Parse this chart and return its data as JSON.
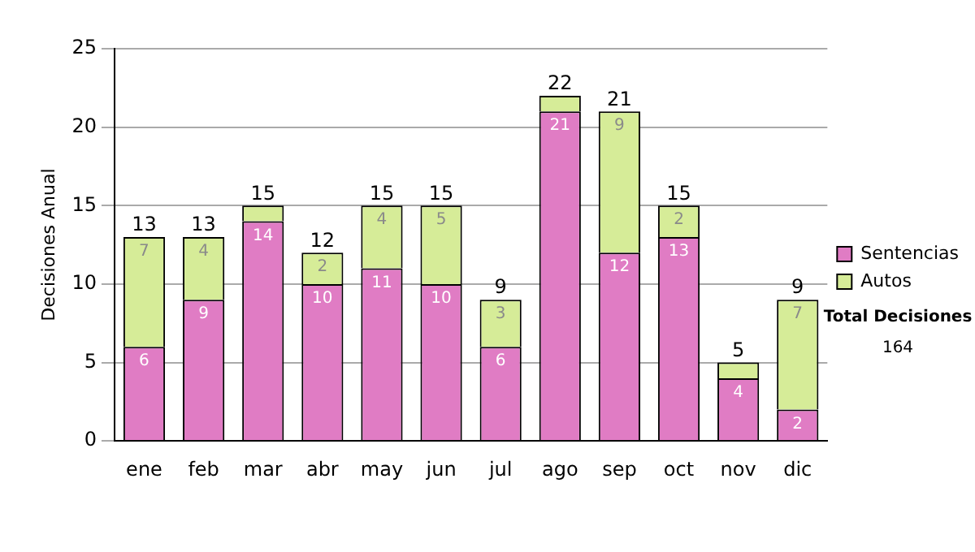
{
  "chart_data": {
    "type": "bar",
    "stacked": true,
    "ylabel": "Decisiones Anual",
    "categories": [
      "ene",
      "feb",
      "mar",
      "abr",
      "may",
      "jun",
      "jul",
      "ago",
      "sep",
      "oct",
      "nov",
      "dic"
    ],
    "series": [
      {
        "name": "Sentencias",
        "color": "#e07cc4",
        "values": [
          6,
          9,
          14,
          10,
          11,
          10,
          6,
          21,
          12,
          13,
          4,
          2
        ],
        "value_labels": [
          "6",
          "9",
          "14",
          "10",
          "11",
          "10",
          "6",
          "21",
          "12",
          "13",
          "4",
          "2"
        ]
      },
      {
        "name": "Autos",
        "color": "#d6ec98",
        "values": [
          7,
          4,
          1,
          2,
          4,
          5,
          3,
          1,
          9,
          2,
          1,
          7
        ],
        "value_labels": [
          "7",
          "4",
          null,
          "2",
          "4",
          "5",
          "3",
          null,
          "9",
          "2",
          null,
          "7"
        ]
      }
    ],
    "totals": [
      "13",
      "13",
      "15",
      "12",
      "15",
      "15",
      "9",
      "22",
      "21",
      "15",
      "5",
      "9"
    ],
    "ylim": [
      0,
      25
    ],
    "yticks": [
      0,
      5,
      10,
      15,
      20,
      25
    ],
    "grid": "y",
    "legend": "right",
    "annotations": [
      "Total Decisiones",
      "164"
    ]
  }
}
